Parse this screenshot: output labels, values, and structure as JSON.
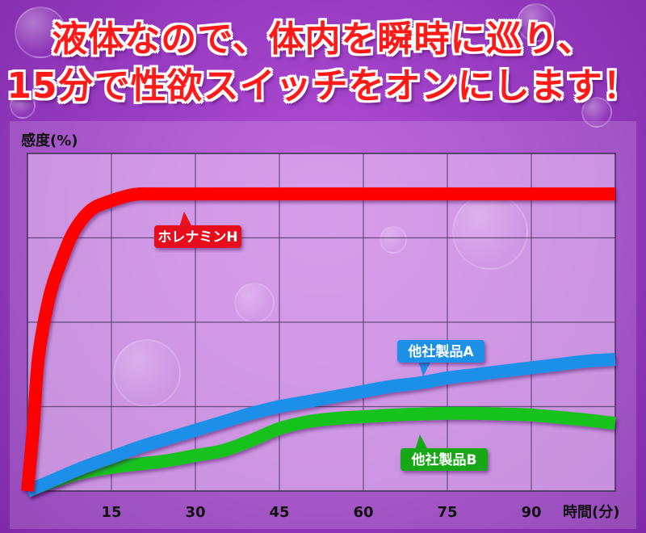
{
  "headline": {
    "line1": "液体なので、体内を瞬時に巡り、",
    "line2": "15分で性欲スイッチをオンにします！"
  },
  "chart_data": {
    "type": "line",
    "ylabel": "感度(%)",
    "xlabel": "時間(分)",
    "x_ticks": [
      15,
      30,
      45,
      60,
      75,
      90
    ],
    "xlim": [
      0,
      105
    ],
    "ylim": [
      0,
      100
    ],
    "grid": true,
    "series": [
      {
        "name": "ホレナミンH",
        "color": "#ff0000",
        "tag_color": "#e8111c",
        "x": [
          0,
          1,
          2,
          4,
          6,
          8,
          10,
          12,
          15,
          18,
          20,
          22,
          25,
          30,
          40,
          50,
          60,
          70,
          80,
          90,
          100,
          105
        ],
        "y": [
          0,
          18,
          40,
          58,
          68,
          76,
          81,
          84,
          86,
          87.5,
          88,
          88,
          88,
          88,
          88,
          88,
          88,
          88,
          88,
          88,
          88,
          88
        ]
      },
      {
        "name": "他社製品A",
        "color": "#1f8fe8",
        "tag_color": "#1f8fe8",
        "x": [
          0,
          5,
          10,
          15,
          20,
          25,
          30,
          35,
          40,
          45,
          50,
          55,
          60,
          65,
          70,
          75,
          80,
          85,
          90,
          95,
          100,
          105
        ],
        "y": [
          0,
          3.5,
          7,
          10,
          13,
          15.5,
          18,
          20.5,
          23,
          25,
          26.5,
          28,
          29.5,
          31,
          32,
          33.5,
          34.5,
          35.5,
          36.5,
          37.5,
          38.5,
          39
        ]
      },
      {
        "name": "他社製品B",
        "color": "#12c21a",
        "tag_color": "#12a818",
        "x": [
          0,
          5,
          10,
          15,
          20,
          25,
          30,
          35,
          40,
          45,
          50,
          55,
          60,
          65,
          70,
          75,
          80,
          85,
          90,
          95,
          100,
          105
        ],
        "y": [
          0,
          3,
          5.5,
          7,
          8,
          9,
          10.5,
          12,
          15,
          18.5,
          20.5,
          21.5,
          22,
          22.5,
          22.8,
          23,
          23,
          22.8,
          22.5,
          21.8,
          21,
          20
        ]
      }
    ]
  }
}
